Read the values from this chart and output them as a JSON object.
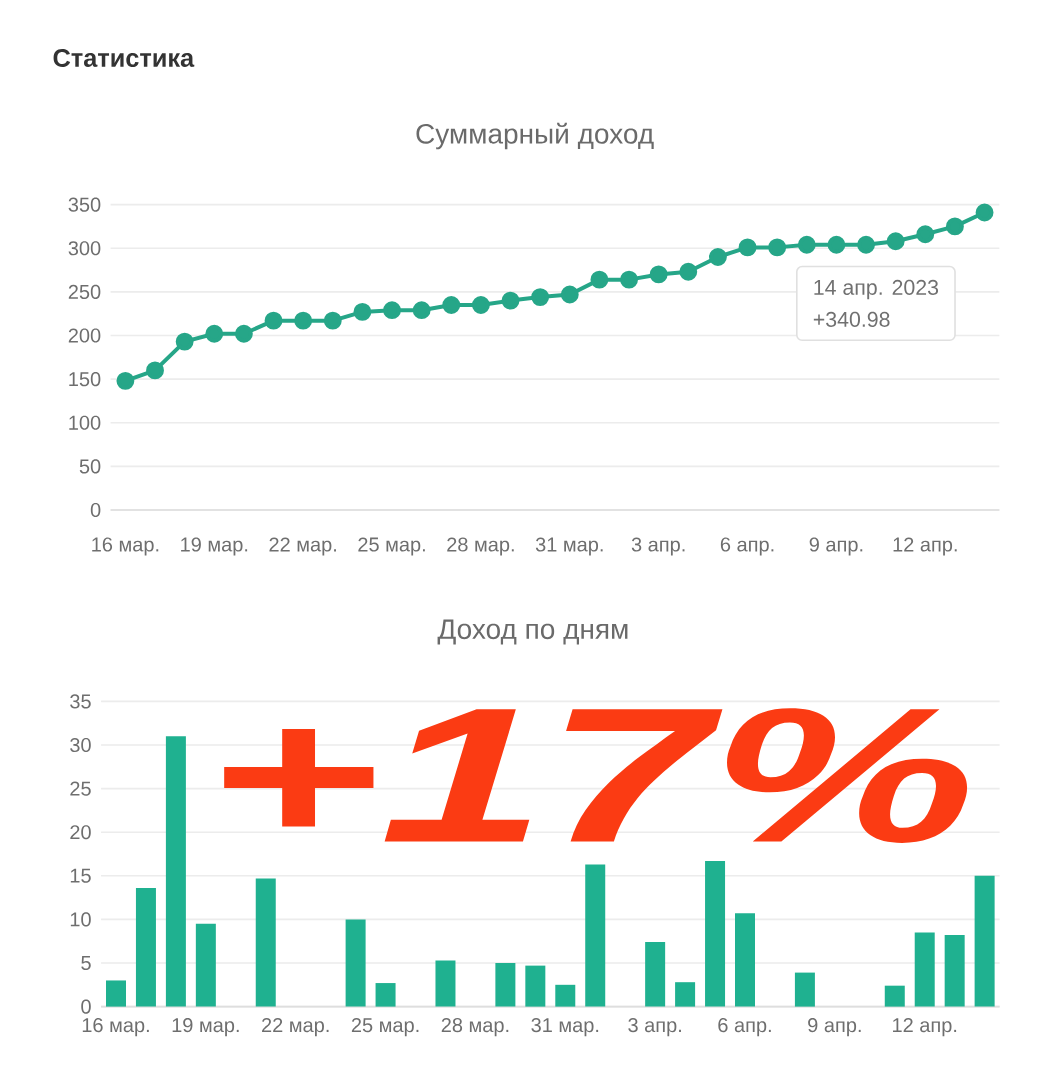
{
  "chart_data": [
    {
      "type": "other",
      "title": "Статистика"
    },
    {
      "type": "line",
      "title": "Суммарный доход",
      "categories": [
        "16 мар.",
        null,
        null,
        "19 мар.",
        null,
        null,
        "22 мар.",
        null,
        null,
        "25 мар.",
        null,
        null,
        "28 мар.",
        null,
        null,
        "31 мар.",
        null,
        null,
        "3 апр.",
        null,
        null,
        "6 апр.",
        null,
        null,
        "9 апр.",
        null,
        null,
        "12 апр.",
        null,
        null
      ],
      "values": [
        148,
        160,
        193,
        202,
        202,
        217,
        217,
        217,
        227,
        229,
        229,
        235,
        235,
        240,
        244,
        247,
        264,
        264,
        270,
        273,
        290,
        301,
        301,
        304,
        304,
        304,
        308,
        316,
        325,
        340.98
      ],
      "color": "#26a688",
      "marker": "circle",
      "line_style": "solid",
      "ylim": [
        0,
        350
      ],
      "yticks": [
        0,
        50,
        100,
        150,
        200,
        250,
        300,
        350
      ],
      "grid": "y",
      "annotations": [
        "14 апр. 2023",
        "+340.98"
      ]
    },
    {
      "type": "bar",
      "title": "Доход по дням",
      "categories": [
        "16 мар.",
        null,
        null,
        "19 мар.",
        null,
        null,
        "22 мар.",
        null,
        null,
        "25 мар.",
        null,
        null,
        "28 мар.",
        null,
        null,
        "31 мар.",
        null,
        null,
        "3 апр.",
        null,
        null,
        "6 апр.",
        null,
        null,
        "9 апр.",
        null,
        null,
        "12 апр.",
        null,
        null
      ],
      "values": [
        3.0,
        13.6,
        31,
        9.5,
        0,
        14.7,
        0,
        0,
        10,
        2.7,
        0,
        5.3,
        0,
        5,
        4.7,
        2.5,
        16.3,
        0,
        7.4,
        2.8,
        16.7,
        10.7,
        0,
        3.9,
        0,
        0,
        2.4,
        8.5,
        8.2,
        15
      ],
      "color": "#1fb190",
      "ylim": [
        0,
        35
      ],
      "yticks": [
        0,
        5,
        10,
        15,
        20,
        25,
        30,
        35
      ],
      "grid": "y",
      "annotations": [
        "+17%"
      ]
    }
  ]
}
